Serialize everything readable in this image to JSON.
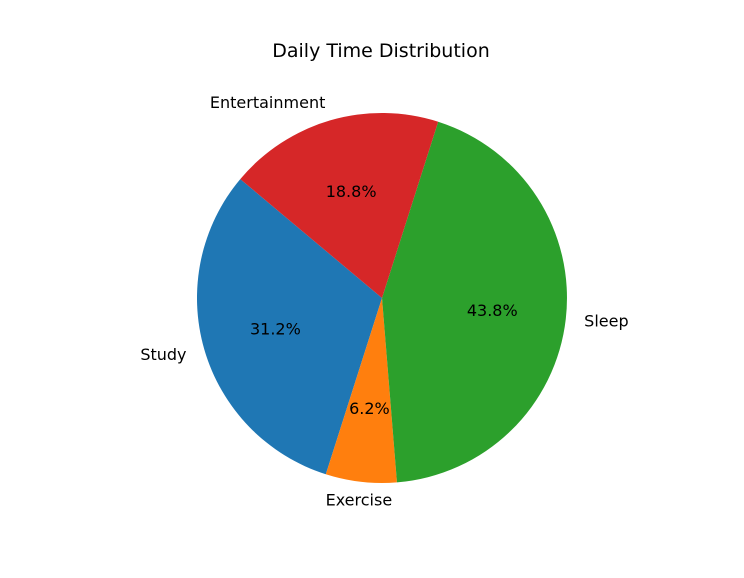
{
  "chart_data": {
    "type": "pie",
    "title": "Daily Time Distribution",
    "categories": [
      "Study",
      "Exercise",
      "Sleep",
      "Entertainment"
    ],
    "values": [
      31.2,
      6.2,
      43.8,
      18.8
    ],
    "percent_labels": [
      "31.2%",
      "6.2%",
      "43.8%",
      "18.8%"
    ],
    "colors": [
      "#1f77b4",
      "#ff7f0e",
      "#2ca02c",
      "#d62728"
    ],
    "start_angle_deg": 140,
    "direction": "counterclockwise"
  }
}
